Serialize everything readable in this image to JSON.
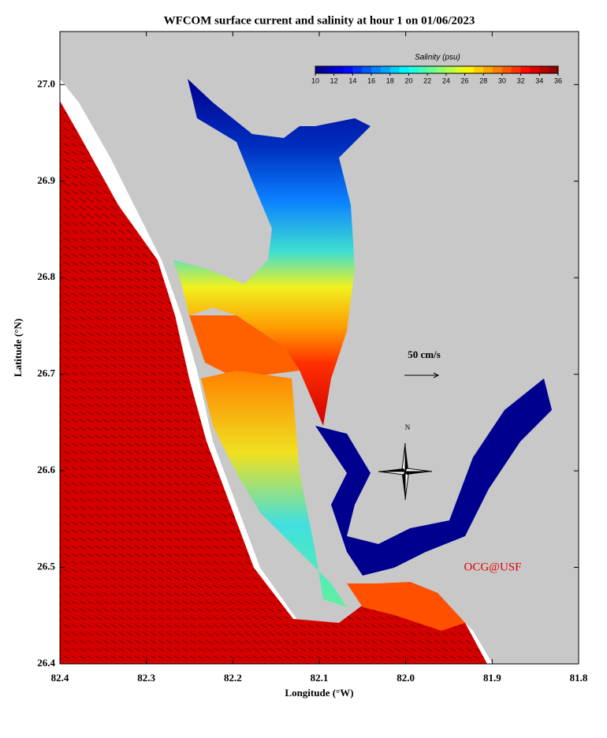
{
  "chart_data": {
    "type": "map",
    "title": "WFCOM surface current and salinity at hour 1 on 01/06/2023",
    "xlabel": "Longitude (°W)",
    "ylabel": "Latitude (°N)",
    "xlim": [
      82.4,
      81.8
    ],
    "xticks": [
      82.4,
      82.3,
      82.2,
      82.1,
      {
        "value": 82,
        "label": "82.0"
      },
      81.9,
      81.8
    ],
    "ylim": [
      26.4,
      27.055
    ],
    "yticks": [
      26.4,
      26.5,
      26.6,
      26.7,
      26.8,
      26.9,
      {
        "value": 27,
        "label": "27.0"
      }
    ],
    "colorbar": {
      "label": "Salinity (psu)",
      "lim": [
        10,
        36
      ],
      "ticks": [
        10,
        12,
        14,
        16,
        18,
        20,
        22,
        24,
        26,
        28,
        30,
        32,
        34,
        36
      ]
    },
    "scale_label": "50 cm/s",
    "credit": "OCG@USF",
    "north_label": "N"
  }
}
